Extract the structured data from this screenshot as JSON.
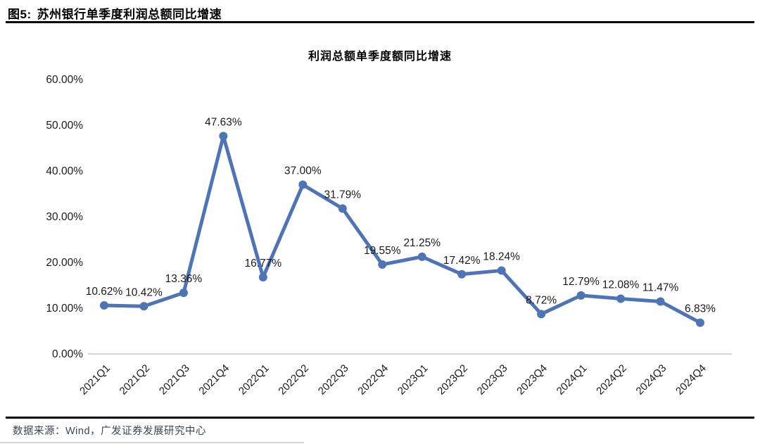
{
  "figure": {
    "label": "图5:",
    "title": "苏州银行单季度利润总额同比增速"
  },
  "source": {
    "text": "数据来源：Wind，广发证券发展研究中心"
  },
  "chart_data": {
    "type": "line",
    "title": "利润总额单季度额同比增速",
    "categories": [
      "2021Q1",
      "2021Q2",
      "2021Q3",
      "2021Q4",
      "2022Q1",
      "2022Q2",
      "2022Q3",
      "2022Q4",
      "2023Q1",
      "2023Q2",
      "2023Q3",
      "2023Q4",
      "2024Q1",
      "2024Q2",
      "2024Q3",
      "2024Q4"
    ],
    "series": [
      {
        "name": "利润总额单季度额同比增速",
        "values": [
          10.62,
          10.42,
          13.36,
          47.63,
          16.77,
          37.0,
          31.79,
          19.55,
          21.25,
          17.42,
          18.24,
          8.72,
          12.79,
          12.08,
          11.47,
          6.83
        ]
      }
    ],
    "data_labels": [
      "10.62%",
      "10.42%",
      "13.36%",
      "47.63%",
      "16.77%",
      "37.00%",
      "31.79%",
      "19.55%",
      "21.25%",
      "17.42%",
      "18.24%",
      "8.72%",
      "12.79%",
      "12.08%",
      "11.47%",
      "6.83%"
    ],
    "yticks": [
      "0.00%",
      "10.00%",
      "20.00%",
      "30.00%",
      "40.00%",
      "50.00%",
      "60.00%"
    ],
    "ytick_values": [
      0,
      10,
      20,
      30,
      40,
      50,
      60
    ],
    "ylim": [
      0,
      60
    ],
    "x_label_rotation": 45,
    "grid": false,
    "legend": "none",
    "line_color": "#4F74B6",
    "marker_color": "#4F74B6",
    "axis_line_color": "#D6D6D6",
    "label_color": "#1A1A1A",
    "title_color": "#000000",
    "source_color": "#3C4657"
  }
}
